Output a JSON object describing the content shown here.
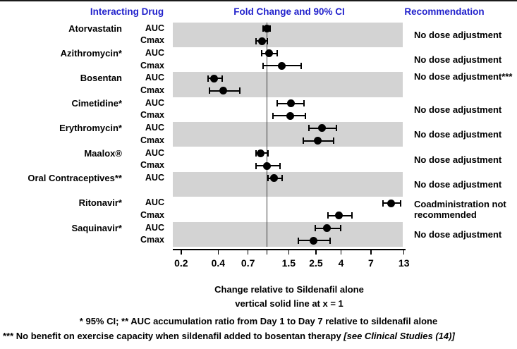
{
  "header": {
    "col_interacting_drug": "Interacting Drug",
    "col_fold_change": "Fold Change and 90% CI",
    "col_recommendation": "Recommendation"
  },
  "axis": {
    "caption_line1": "Change relative to Sildenafil alone",
    "caption_line2": "vertical solid line at x = 1"
  },
  "footnotes": {
    "line1": "* 95% CI;  ** AUC accumulation ratio from Day 1 to Day 7 relative to sildenafil alone",
    "line2_main": "*** No benefit on exercise capacity when sildenafil added to bosentan therapy ",
    "line2_ref": "[see Clinical Studies (14)]"
  },
  "colors": {
    "header_blue": "#2222cc",
    "band_gray": "#d3d3d3",
    "marker_black": "#000000",
    "reference_line": "#3a3a3a"
  },
  "chart_data": {
    "type": "forest",
    "title": "Fold Change and 90% CI",
    "xlabel": "Change relative to Sildenafil alone",
    "x_scale": "log",
    "xlim": [
      0.171,
      13.4
    ],
    "reference_line_x": 1,
    "x_ticks": [
      {
        "value": 0.2,
        "label": "0.2"
      },
      {
        "value": 0.4,
        "label": "0.4"
      },
      {
        "value": 0.7,
        "label": "0.7"
      },
      {
        "value": 1,
        "label": ""
      },
      {
        "value": 1.5,
        "label": "1.5"
      },
      {
        "value": 2.5,
        "label": "2.5"
      },
      {
        "value": 4,
        "label": "4"
      },
      {
        "value": 7,
        "label": "7"
      },
      {
        "value": 13,
        "label": "13"
      }
    ],
    "groups": [
      {
        "drug": "Atorvastatin",
        "shaded": true,
        "recommendation": "No dose adjustment",
        "measures": [
          {
            "param": "AUC",
            "value": 1.0,
            "ci_low": 0.93,
            "ci_high": 1.06
          },
          {
            "param": "Cmax",
            "value": 0.91,
            "ci_low": 0.81,
            "ci_high": 1.0
          }
        ]
      },
      {
        "drug": "Azithromycin*",
        "shaded": false,
        "recommendation": "No dose adjustment",
        "measures": [
          {
            "param": "AUC",
            "value": 1.04,
            "ci_low": 0.9,
            "ci_high": 1.21
          },
          {
            "param": "Cmax",
            "value": 1.32,
            "ci_low": 0.93,
            "ci_high": 1.9
          }
        ]
      },
      {
        "drug": "Bosentan",
        "shaded": true,
        "recommendation": "No dose adjustment***",
        "measures": [
          {
            "param": "AUC",
            "value": 0.37,
            "ci_low": 0.33,
            "ci_high": 0.43
          },
          {
            "param": "Cmax",
            "value": 0.44,
            "ci_low": 0.34,
            "ci_high": 0.6
          }
        ]
      },
      {
        "drug": "Cimetidine*",
        "shaded": false,
        "recommendation": "No dose adjustment",
        "measures": [
          {
            "param": "AUC",
            "value": 1.56,
            "ci_low": 1.21,
            "ci_high": 2.01
          },
          {
            "param": "Cmax",
            "value": 1.55,
            "ci_low": 1.11,
            "ci_high": 2.06
          }
        ]
      },
      {
        "drug": "Erythromycin*",
        "shaded": true,
        "recommendation": "No dose adjustment",
        "measures": [
          {
            "param": "AUC",
            "value": 2.8,
            "ci_low": 2.2,
            "ci_high": 3.65
          },
          {
            "param": "Cmax",
            "value": 2.6,
            "ci_low": 1.97,
            "ci_high": 3.48
          }
        ]
      },
      {
        "drug": "Maalox®",
        "shaded": false,
        "recommendation": "No dose adjustment",
        "measures": [
          {
            "param": "AUC",
            "value": 0.89,
            "ci_low": 0.81,
            "ci_high": 1.02
          },
          {
            "param": "Cmax",
            "value": 1.0,
            "ci_low": 0.81,
            "ci_high": 1.27
          }
        ]
      },
      {
        "drug": "Oral Contraceptives**",
        "shaded": true,
        "recommendation": "No dose adjustment",
        "measures": [
          {
            "param": "AUC",
            "value": 1.14,
            "ci_low": 1.02,
            "ci_high": 1.32
          },
          {
            "param": "",
            "value": null,
            "ci_low": null,
            "ci_high": null
          }
        ]
      },
      {
        "drug": "Ritonavir*",
        "shaded": false,
        "recommendation": "Coadministration not recommended",
        "measures": [
          {
            "param": "AUC",
            "value": 10.2,
            "ci_low": 8.8,
            "ci_high": 12.2
          },
          {
            "param": "Cmax",
            "value": 3.86,
            "ci_low": 3.12,
            "ci_high": 4.91
          }
        ]
      },
      {
        "drug": "Saquinavir*",
        "shaded": true,
        "recommendation": "No dose adjustment",
        "measures": [
          {
            "param": "AUC",
            "value": 3.08,
            "ci_low": 2.47,
            "ci_high": 3.98
          },
          {
            "param": "Cmax",
            "value": 2.38,
            "ci_low": 1.8,
            "ci_high": 3.26
          }
        ]
      }
    ]
  }
}
